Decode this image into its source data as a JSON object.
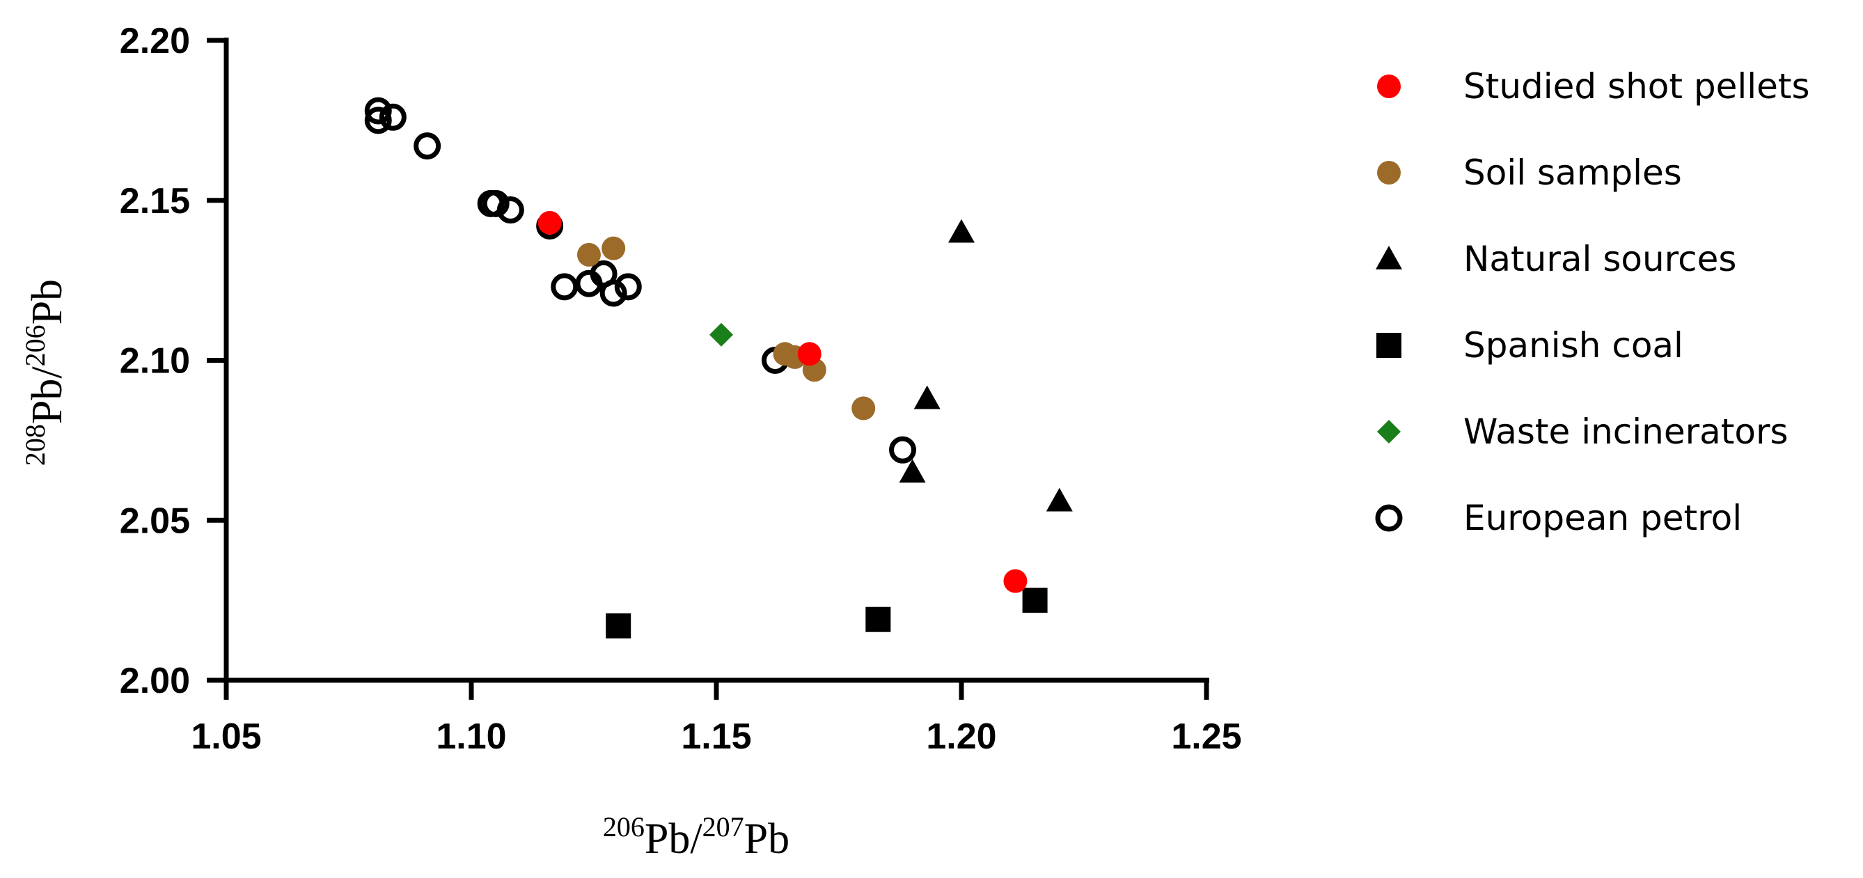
{
  "chart_data": {
    "type": "scatter",
    "xlabel": {
      "sup1": "206",
      "base1": "Pb/",
      "sup2": "207",
      "base2": "Pb"
    },
    "ylabel": {
      "sup1": "208",
      "base1": "Pb/",
      "sup2": "206",
      "base2": "Pb"
    },
    "xlim": [
      1.05,
      1.25
    ],
    "ylim": [
      2.0,
      2.2
    ],
    "xticks": [
      "1.05",
      "1.10",
      "1.15",
      "1.20",
      "1.25"
    ],
    "yticks": [
      "2.00",
      "2.05",
      "2.10",
      "2.15",
      "2.20"
    ],
    "grid": false,
    "legend_position": "right",
    "series": [
      {
        "name": "Studied shot pellets",
        "marker": "circle-filled",
        "color": "#ff0000",
        "points": [
          [
            1.116,
            2.143
          ],
          [
            1.169,
            2.102
          ],
          [
            1.211,
            2.031
          ]
        ]
      },
      {
        "name": "Soil samples",
        "marker": "circle-filled",
        "color": "#9c6b2a",
        "points": [
          [
            1.124,
            2.133
          ],
          [
            1.129,
            2.135
          ],
          [
            1.164,
            2.102
          ],
          [
            1.166,
            2.101
          ],
          [
            1.17,
            2.097
          ],
          [
            1.18,
            2.085
          ]
        ]
      },
      {
        "name": "Natural sources",
        "marker": "triangle",
        "color": "#000000",
        "points": [
          [
            1.2,
            2.14
          ],
          [
            1.193,
            2.088
          ],
          [
            1.19,
            2.065
          ],
          [
            1.22,
            2.056
          ]
        ]
      },
      {
        "name": "Spanish coal",
        "marker": "square",
        "color": "#000000",
        "points": [
          [
            1.13,
            2.017
          ],
          [
            1.183,
            2.019
          ],
          [
            1.215,
            2.025
          ]
        ]
      },
      {
        "name": "Waste incinerators",
        "marker": "diamond",
        "color": "#1a7f1a",
        "points": [
          [
            1.151,
            2.108
          ]
        ]
      },
      {
        "name": "European petrol",
        "marker": "circle-open",
        "color": "#000000",
        "points": [
          [
            1.081,
            2.178
          ],
          [
            1.081,
            2.175
          ],
          [
            1.084,
            2.176
          ],
          [
            1.091,
            2.167
          ],
          [
            1.104,
            2.149
          ],
          [
            1.105,
            2.149
          ],
          [
            1.108,
            2.147
          ],
          [
            1.116,
            2.142
          ],
          [
            1.119,
            2.123
          ],
          [
            1.124,
            2.124
          ],
          [
            1.127,
            2.127
          ],
          [
            1.129,
            2.121
          ],
          [
            1.132,
            2.123
          ],
          [
            1.162,
            2.1
          ],
          [
            1.188,
            2.072
          ]
        ]
      }
    ]
  }
}
